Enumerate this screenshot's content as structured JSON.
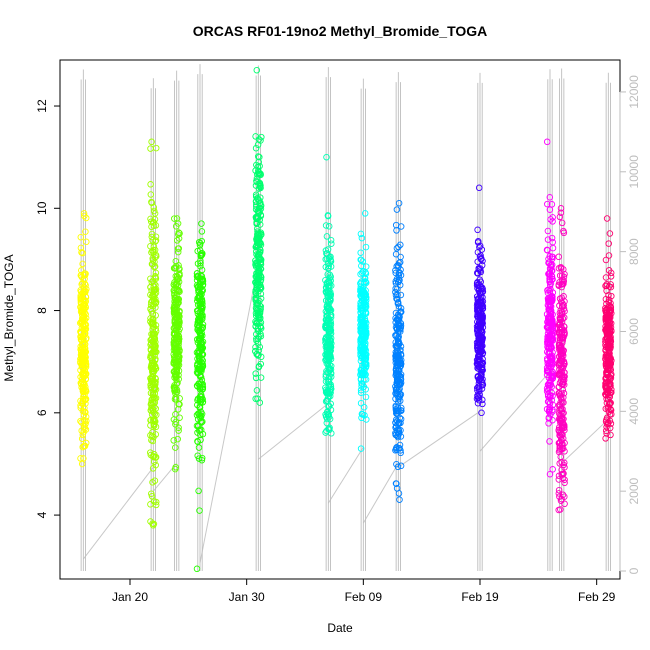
{
  "chart_data": {
    "type": "scatter",
    "title": "ORCAS RF01-19no2 Methyl_Bromide_TOGA",
    "xlabel": "Date",
    "ylabel": "Methyl_Bromide_TOGA",
    "x_ticks": [
      "Jan 20",
      "Jan 30",
      "Feb 09",
      "Feb 19",
      "Feb 29"
    ],
    "y_ticks": [
      "4",
      "6",
      "8",
      "10",
      "12"
    ],
    "y2_ticks": [
      "0",
      "2000",
      "4000",
      "6000",
      "8000",
      "10000",
      "12000"
    ],
    "xlim": [
      "2016-01-14",
      "2016-03-02"
    ],
    "ylim": [
      2.75,
      12.9
    ],
    "y2lim": [
      -200,
      12800
    ],
    "grid": false,
    "legend": "none",
    "secondary_series": "flight altitude (grey line, right axis)",
    "flights": [
      {
        "date": "2016-01-16",
        "color": "#ffff00",
        "ymin": 5.0,
        "ymax": 9.9,
        "mean": 7.3,
        "sd": 0.95
      },
      {
        "date": "2016-01-22",
        "color": "#a0ff00",
        "ymin": 3.8,
        "ymax": 11.3,
        "mean": 7.2,
        "sd": 1.4
      },
      {
        "date": "2016-01-24",
        "color": "#64ff00",
        "ymin": 4.9,
        "ymax": 9.8,
        "mean": 7.5,
        "sd": 0.9
      },
      {
        "date": "2016-01-26",
        "color": "#28ff00",
        "ymin": 2.95,
        "ymax": 9.7,
        "mean": 7.2,
        "sd": 1.1
      },
      {
        "date": "2016-01-31",
        "color": "#00ff6e",
        "ymin": 6.2,
        "ymax": 12.7,
        "mean": 8.9,
        "sd": 1.1
      },
      {
        "date": "2016-02-06",
        "color": "#00ffb4",
        "ymin": 5.6,
        "ymax": 11.0,
        "mean": 7.5,
        "sd": 0.9
      },
      {
        "date": "2016-02-09",
        "color": "#00ffff",
        "ymin": 5.3,
        "ymax": 9.9,
        "mean": 7.6,
        "sd": 0.7
      },
      {
        "date": "2016-02-12",
        "color": "#0080ff",
        "ymin": 4.3,
        "ymax": 10.1,
        "mean": 6.9,
        "sd": 1.1
      },
      {
        "date": "2016-02-19",
        "color": "#4000ff",
        "ymin": 6.0,
        "ymax": 10.4,
        "mean": 7.7,
        "sd": 0.75
      },
      {
        "date": "2016-02-25",
        "color": "#ff00ff",
        "ymin": 4.8,
        "ymax": 11.3,
        "mean": 7.6,
        "sd": 1.0
      },
      {
        "date": "2016-02-26",
        "color": "#ff00c0",
        "ymin": 4.1,
        "ymax": 10.0,
        "mean": 6.6,
        "sd": 1.2
      },
      {
        "date": "2016-03-01",
        "color": "#ff0070",
        "ymin": 5.5,
        "ymax": 9.8,
        "mean": 7.2,
        "sd": 0.75
      }
    ],
    "altitude_connectors": [
      [
        "2016-01-16",
        300,
        "2016-01-22",
        2600
      ],
      [
        "2016-01-22",
        2000,
        "2016-01-24",
        2700
      ],
      [
        "2016-01-26",
        200,
        "2016-01-31",
        7700
      ],
      [
        "2016-01-31",
        2800,
        "2016-02-06",
        4200
      ],
      [
        "2016-02-06",
        1700,
        "2016-02-09",
        3100
      ],
      [
        "2016-02-09",
        1200,
        "2016-02-12",
        2700
      ],
      [
        "2016-02-12",
        2600,
        "2016-02-19",
        4000
      ],
      [
        "2016-02-19",
        3000,
        "2016-02-25",
        5000
      ],
      [
        "2016-02-26",
        2700,
        "2016-03-01",
        3800
      ]
    ]
  }
}
